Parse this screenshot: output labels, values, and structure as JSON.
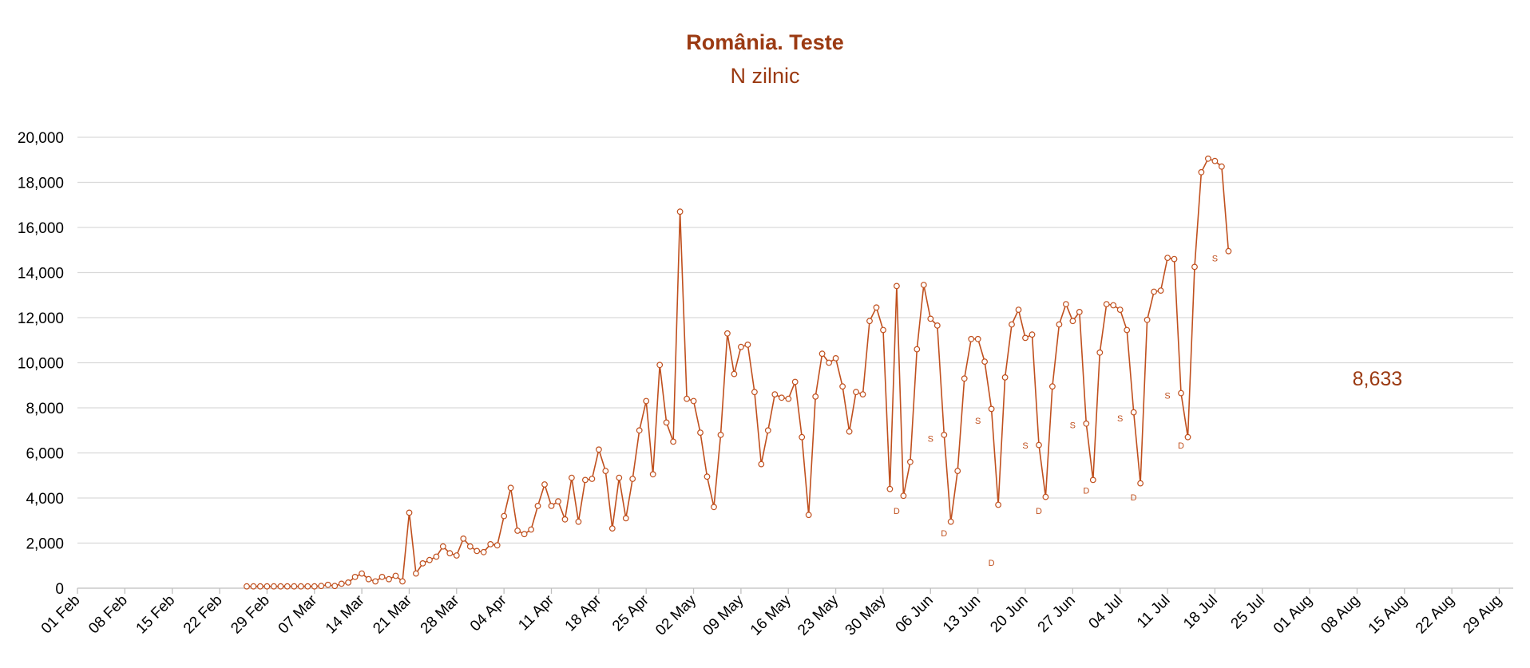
{
  "chart_data": {
    "type": "line",
    "title": "România. Teste",
    "subtitle": "N zilnic",
    "xlabel": "",
    "ylabel": "",
    "ylim": [
      0,
      20000
    ],
    "yticks": [
      "0",
      "2,000",
      "4,000",
      "6,000",
      "8,000",
      "10,000",
      "12,000",
      "14,000",
      "16,000",
      "18,000",
      "20,000"
    ],
    "xticks": [
      "01 Feb",
      "08 Feb",
      "15 Feb",
      "22 Feb",
      "29 Feb",
      "07 Mar",
      "14 Mar",
      "21 Mar",
      "28 Mar",
      "04 Apr",
      "11 Apr",
      "18 Apr",
      "25 Apr",
      "02 May",
      "09 May",
      "16 May",
      "23 May",
      "30 May",
      "06 Jun",
      "13 Jun",
      "20 Jun",
      "27 Jun",
      "04 Jul",
      "11 Jul",
      "18 Jul",
      "25 Jul",
      "01 Aug",
      "08 Aug",
      "15 Aug",
      "22 Aug",
      "29 Aug"
    ],
    "x_start": "2020-02-26",
    "grid": true,
    "legend": "none",
    "color": "#c0501e",
    "series": [
      {
        "values": [
          80,
          80,
          80,
          80,
          80,
          80,
          80,
          80,
          80,
          80,
          80,
          100,
          150,
          100,
          200,
          250,
          500,
          650,
          400,
          300,
          500,
          400,
          550,
          300,
          3350,
          650,
          1100,
          1250,
          1400,
          1850,
          1550,
          1450,
          2200,
          1850,
          1650,
          1600,
          1950,
          1900,
          3200,
          4450,
          2550,
          2400,
          2600,
          3650,
          4600,
          3650,
          3850,
          3050,
          4900,
          2950,
          4800,
          4850,
          6150,
          5200,
          2650,
          4900,
          3100,
          4850,
          7000,
          8300,
          5050,
          9900,
          7350,
          6500,
          16700,
          8400,
          8300,
          6900,
          4950,
          3600,
          6800,
          11300,
          9500,
          10700,
          10800,
          8700,
          5500,
          7000,
          8600,
          8450,
          8400,
          9150,
          6700,
          3250,
          8500,
          10400,
          10000,
          10200,
          8950,
          6950,
          8700,
          8600,
          11850,
          12450,
          11450,
          4400,
          13400,
          4100,
          5600,
          10600,
          13450,
          11950,
          11650,
          6800,
          2950,
          5200,
          9300,
          11050,
          11050,
          10050,
          7950,
          3700,
          9350,
          11700,
          12350,
          11100,
          11250,
          6350,
          4050,
          8950,
          11700,
          12600,
          11850,
          12250,
          7300,
          4800,
          10450,
          12600,
          12550,
          12350,
          11450,
          7800,
          4650,
          11900,
          13150,
          13200,
          14650,
          14600,
          8650,
          6700,
          14250,
          18450,
          19050,
          18950,
          18700,
          14950
        ]
      }
    ],
    "weekday_labels": [
      {
        "text": "D",
        "date": "2020-06-01",
        "y": 3300
      },
      {
        "text": "S",
        "date": "2020-06-06",
        "y": 6500
      },
      {
        "text": "D",
        "date": "2020-06-08",
        "y": 2300
      },
      {
        "text": "S",
        "date": "2020-06-13",
        "y": 7300
      },
      {
        "text": "D",
        "date": "2020-06-15",
        "y": 1000
      },
      {
        "text": "S",
        "date": "2020-06-20",
        "y": 6200
      },
      {
        "text": "D",
        "date": "2020-06-22",
        "y": 3300
      },
      {
        "text": "S",
        "date": "2020-06-27",
        "y": 7100
      },
      {
        "text": "D",
        "date": "2020-06-29",
        "y": 4200
      },
      {
        "text": "S",
        "date": "2020-07-04",
        "y": 7400
      },
      {
        "text": "D",
        "date": "2020-07-06",
        "y": 3900
      },
      {
        "text": "S",
        "date": "2020-07-11",
        "y": 8400
      },
      {
        "text": "D",
        "date": "2020-07-13",
        "y": 6200
      },
      {
        "text": "S",
        "date": "2020-07-18",
        "y": 14500
      }
    ],
    "last_value_label": {
      "text": "8,633",
      "date": "2020-08-11",
      "y": 9000
    }
  }
}
